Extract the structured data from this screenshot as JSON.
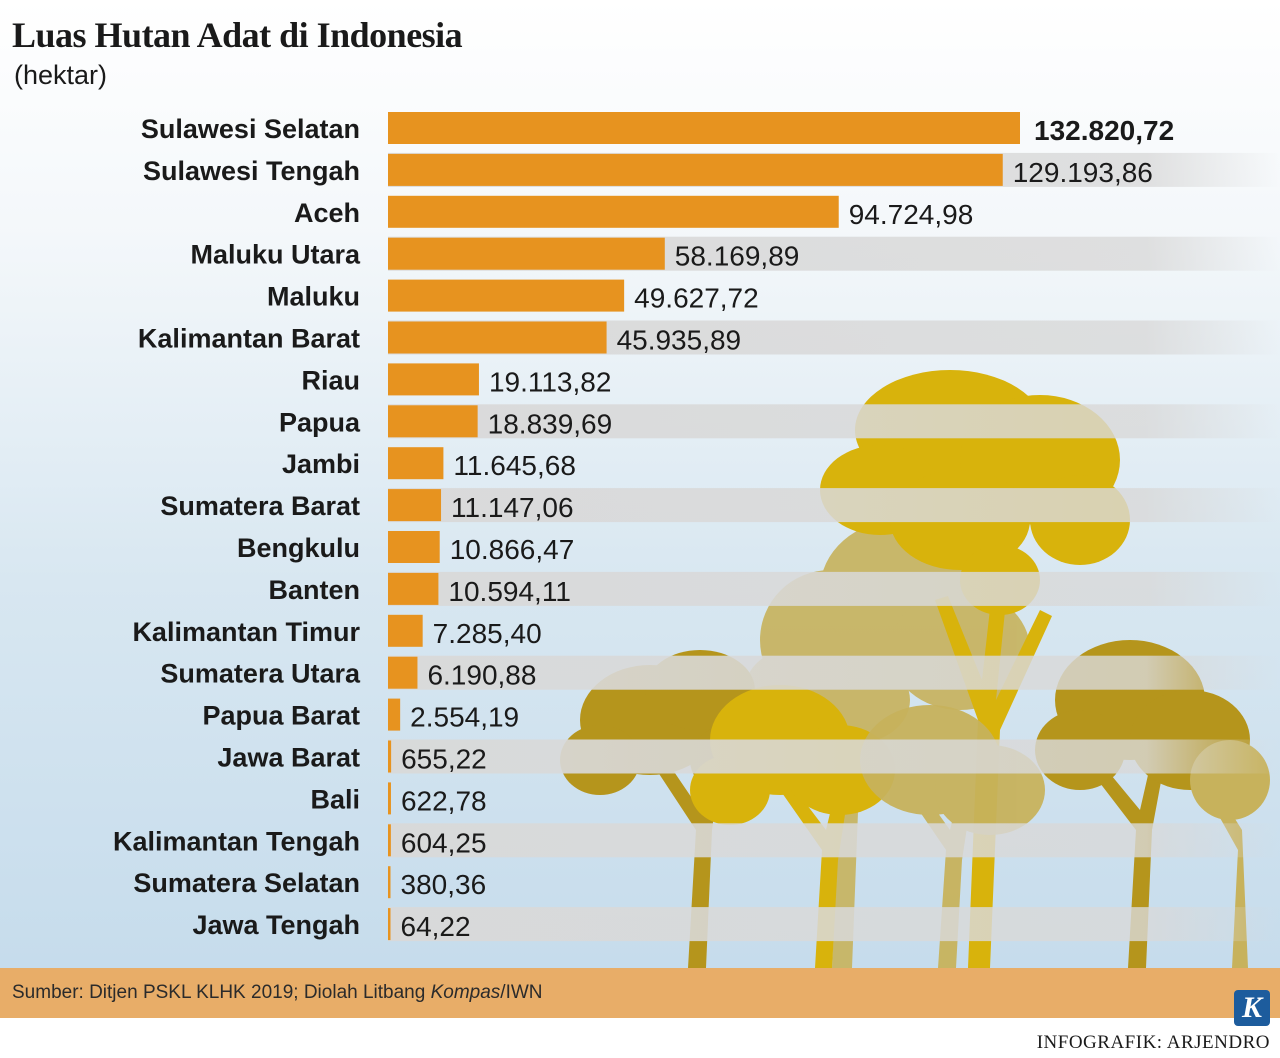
{
  "title": "Luas Hutan Adat di Indonesia",
  "subtitle": "(hektar)",
  "colors": {
    "bar": "#e7931f",
    "band": "#d9d9d9",
    "tree_gold": "#d8b30c",
    "tree_olive": "#b5951c",
    "tree_khaki": "#c7b25c",
    "footer": "#e8ad68"
  },
  "chart_data": {
    "type": "bar",
    "orientation": "horizontal",
    "categories": [
      "Sulawesi Selatan",
      "Sulawesi Tengah",
      "Aceh",
      "Maluku Utara",
      "Maluku",
      "Kalimantan Barat",
      "Riau",
      "Papua",
      "Jambi",
      "Sumatera Barat",
      "Bengkulu",
      "Banten",
      "Kalimantan Timur",
      "Sumatera Utara",
      "Papua Barat",
      "Jawa Barat",
      "Bali",
      "Kalimantan Tengah",
      "Sumatera Selatan",
      "Jawa Tengah"
    ],
    "values": [
      132820.72,
      129193.86,
      94724.98,
      58169.89,
      49627.72,
      45935.89,
      19113.82,
      18839.69,
      11645.68,
      11147.06,
      10866.47,
      10594.11,
      7285.4,
      6190.88,
      2554.19,
      655.22,
      622.78,
      604.25,
      380.36,
      64.22
    ],
    "value_labels": [
      "132.820,72",
      "129.193,86",
      "94.724,98",
      "58.169,89",
      "49.627,72",
      "45.935,89",
      "19.113,82",
      "18.839,69",
      "11.645,68",
      "11.147,06",
      "10.866,47",
      "10.594,11",
      "7.285,40",
      "6.190,88",
      "2.554,19",
      "655,22",
      "622,78",
      "604,25",
      "380,36",
      "64,22"
    ],
    "title": "Luas Hutan Adat di Indonesia",
    "ylabel": "(hektar)",
    "xlim": [
      0,
      132820.72
    ],
    "grid": false,
    "legend": "none"
  },
  "footer": {
    "source_prefix": "Sumber: Ditjen PSKL KLHK 2019; Diolah Litbang ",
    "source_italic": "Kompas",
    "source_suffix": "/IWN",
    "logo_letter": "K",
    "credit": "INFOGRAFIK: ARJENDRO"
  }
}
